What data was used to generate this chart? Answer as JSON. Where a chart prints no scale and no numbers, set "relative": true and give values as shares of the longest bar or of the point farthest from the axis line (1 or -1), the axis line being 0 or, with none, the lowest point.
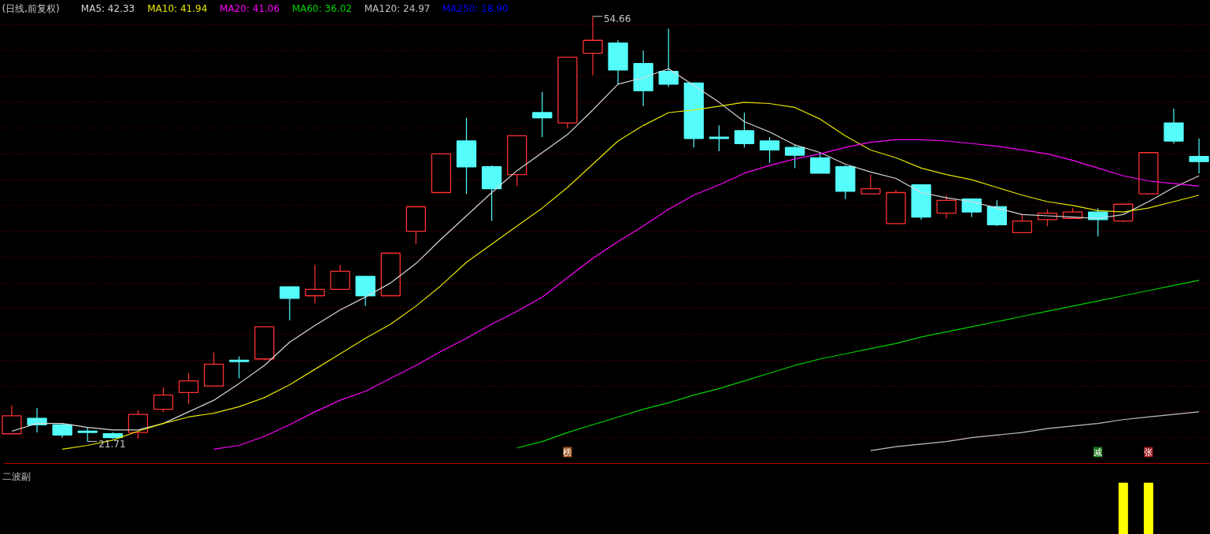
{
  "chart_data": [
    {
      "type": "candlestick",
      "title": "(日线,前复权)",
      "categories": [
        null,
        null,
        null,
        null,
        null,
        null,
        null,
        null,
        null,
        null,
        null,
        null,
        null,
        null,
        null,
        null,
        null,
        null,
        null,
        null,
        null,
        null,
        null,
        null,
        null,
        null,
        null,
        null,
        null,
        null,
        null,
        null,
        null,
        null,
        null,
        null,
        null,
        null,
        null,
        null,
        null,
        null,
        null,
        null,
        null,
        null,
        null,
        null
      ],
      "ohlc": [
        [
          22.3,
          24.5,
          22.3,
          23.7
        ],
        [
          23.5,
          24.3,
          22.4,
          23.0
        ],
        [
          23.0,
          23.1,
          22.0,
          22.2
        ],
        [
          22.5,
          22.8,
          21.71,
          22.4
        ],
        [
          22.3,
          22.4,
          21.9,
          22.0
        ],
        [
          22.4,
          24.1,
          21.9,
          23.8
        ],
        [
          24.2,
          25.9,
          24.0,
          25.3
        ],
        [
          25.5,
          27.0,
          24.6,
          26.4
        ],
        [
          26.0,
          28.6,
          26.0,
          27.7
        ],
        [
          28.0,
          28.3,
          26.6,
          27.9
        ],
        [
          28.1,
          30.6,
          28.0,
          30.6
        ],
        [
          33.7,
          33.7,
          31.1,
          32.8
        ],
        [
          33.0,
          35.4,
          32.4,
          33.5
        ],
        [
          33.5,
          35.4,
          33.5,
          34.9
        ],
        [
          34.5,
          34.5,
          32.2,
          33.0
        ],
        [
          33.0,
          36.3,
          33.0,
          36.3
        ],
        [
          38.0,
          39.9,
          37.0,
          39.9
        ],
        [
          41.0,
          44.0,
          41.0,
          44.0
        ],
        [
          45.0,
          46.8,
          40.9,
          43.0
        ],
        [
          43.0,
          43.1,
          38.8,
          41.3
        ],
        [
          42.4,
          45.4,
          41.5,
          45.4
        ],
        [
          47.2,
          48.8,
          45.3,
          46.8
        ],
        [
          46.4,
          51.5,
          46.0,
          51.5
        ],
        [
          51.8,
          54.66,
          50.1,
          52.8
        ],
        [
          52.6,
          52.8,
          49.4,
          50.5
        ],
        [
          51.0,
          52.0,
          47.7,
          48.9
        ],
        [
          50.4,
          53.7,
          49.2,
          49.4
        ],
        [
          49.5,
          49.5,
          44.5,
          45.2
        ],
        [
          45.3,
          46.2,
          44.2,
          45.2
        ],
        [
          45.8,
          47.2,
          44.5,
          44.8
        ],
        [
          45.0,
          45.3,
          43.3,
          44.3
        ],
        [
          44.5,
          44.7,
          42.9,
          43.9
        ],
        [
          43.7,
          44.1,
          42.5,
          42.5
        ],
        [
          43.0,
          43.1,
          40.5,
          41.1
        ],
        [
          40.9,
          42.4,
          40.9,
          41.3
        ],
        [
          38.6,
          41.2,
          38.6,
          41.0
        ],
        [
          41.6,
          41.6,
          38.9,
          39.1
        ],
        [
          39.4,
          40.8,
          39.0,
          40.4
        ],
        [
          40.5,
          40.5,
          39.1,
          39.5
        ],
        [
          39.9,
          40.4,
          38.4,
          38.5
        ],
        [
          37.9,
          39.3,
          37.9,
          38.8
        ],
        [
          38.9,
          39.7,
          38.4,
          39.4
        ],
        [
          39.0,
          39.8,
          39.0,
          39.5
        ],
        [
          39.5,
          39.8,
          37.6,
          38.9
        ],
        [
          38.8,
          40.1,
          38.7,
          40.1
        ],
        [
          40.9,
          44.1,
          40.9,
          44.1
        ],
        [
          46.4,
          47.5,
          44.8,
          45.0
        ],
        [
          43.8,
          45.2,
          42.5,
          43.4
        ]
      ],
      "colors": [
        "#ff3232",
        "#54fcfc",
        "#54fcfc",
        "#54fcfc",
        "#54fcfc",
        "#ff3232",
        "#ff3232",
        "#ff3232",
        "#ff3232",
        "#54fcfc",
        "#ff3232",
        "#54fcfc",
        "#ff3232",
        "#ff3232",
        "#54fcfc",
        "#ff3232",
        "#ff3232",
        "#ff3232",
        "#54fcfc",
        "#54fcfc",
        "#ff3232",
        "#54fcfc",
        "#ff3232",
        "#ff3232",
        "#54fcfc",
        "#54fcfc",
        "#54fcfc",
        "#54fcfc",
        "#54fcfc",
        "#54fcfc",
        "#54fcfc",
        "#54fcfc",
        "#54fcfc",
        "#54fcfc",
        "#ff3232",
        "#ff3232",
        "#54fcfc",
        "#ff3232",
        "#54fcfc",
        "#54fcfc",
        "#ff3232",
        "#ff3232",
        "#ff3232",
        "#54fcfc",
        "#ff3232",
        "#ff3232",
        "#54fcfc",
        "#54fcfc"
      ],
      "series": [
        {
          "type": "line",
          "name": "MA5: 42.33",
          "color": "#d8d8d8",
          "values": [
            22.5,
            23.1,
            23.1,
            22.8,
            22.6,
            22.6,
            23.1,
            24.0,
            24.9,
            26.2,
            27.6,
            29.4,
            30.7,
            31.9,
            32.9,
            34.0,
            35.5,
            37.4,
            39.2,
            41.0,
            42.7,
            44.1,
            45.5,
            47.4,
            49.4,
            49.9,
            50.6,
            49.3,
            48.0,
            46.5,
            45.7,
            44.7,
            44.1,
            43.2,
            42.6,
            42.1,
            41.0,
            40.6,
            40.3,
            39.8,
            39.3,
            39.2,
            39.1,
            39.0,
            39.3,
            40.3,
            41.4,
            42.3
          ]
        },
        {
          "type": "line",
          "name": "MA10: 41.94",
          "color": "#e6e600",
          "values": [
            null,
            null,
            21.1,
            21.4,
            21.8,
            22.5,
            23.1,
            23.6,
            23.9,
            24.4,
            25.1,
            26.1,
            27.3,
            28.5,
            29.7,
            30.8,
            32.2,
            33.8,
            35.6,
            37.0,
            38.4,
            39.8,
            41.4,
            43.2,
            45.0,
            46.2,
            47.2,
            47.4,
            47.7,
            48.0,
            47.9,
            47.6,
            46.7,
            45.4,
            44.3,
            43.7,
            42.9,
            42.4,
            42.0,
            41.4,
            40.8,
            40.3,
            40.0,
            39.6,
            39.5,
            39.8,
            40.3,
            40.8
          ]
        },
        {
          "type": "line",
          "name": "MA20: 41.06",
          "color": "#ff00ff",
          "values": [
            null,
            null,
            null,
            null,
            null,
            null,
            null,
            null,
            21.1,
            21.4,
            22.1,
            23.0,
            24.0,
            24.9,
            25.6,
            26.6,
            27.6,
            28.7,
            29.7,
            30.8,
            31.8,
            32.9,
            34.4,
            35.9,
            37.2,
            38.4,
            39.7,
            40.8,
            41.6,
            42.5,
            43.1,
            43.6,
            44.0,
            44.5,
            44.9,
            45.1,
            45.1,
            45.0,
            44.8,
            44.6,
            44.3,
            44.0,
            43.5,
            42.9,
            42.3,
            41.9,
            41.7,
            41.5
          ]
        },
        {
          "type": "line",
          "name": "MA60: 36.02",
          "color": "#00d200",
          "values": [
            null,
            null,
            null,
            null,
            null,
            null,
            null,
            null,
            null,
            null,
            null,
            null,
            null,
            null,
            null,
            null,
            null,
            null,
            null,
            null,
            21.2,
            21.7,
            22.4,
            23.0,
            23.6,
            24.2,
            24.7,
            25.3,
            25.8,
            26.4,
            27.0,
            27.6,
            28.1,
            28.5,
            28.9,
            29.3,
            29.8,
            30.2,
            30.6,
            31.0,
            31.4,
            31.8,
            32.2,
            32.6,
            33.0,
            33.4,
            33.8,
            34.2
          ]
        },
        {
          "type": "line",
          "name": "MA120: 24.97",
          "color": "#c0c0c0",
          "values": [
            null,
            null,
            null,
            null,
            null,
            null,
            null,
            null,
            null,
            null,
            null,
            null,
            null,
            null,
            null,
            null,
            null,
            null,
            null,
            null,
            null,
            null,
            null,
            null,
            null,
            null,
            null,
            null,
            null,
            null,
            null,
            null,
            null,
            null,
            21.0,
            21.3,
            21.5,
            21.7,
            22.0,
            22.2,
            22.4,
            22.7,
            22.9,
            23.1,
            23.4,
            23.6,
            23.8,
            24.0
          ]
        },
        {
          "type": "line",
          "name": "MA250: 18.90",
          "color": "#0000ff",
          "values": [
            null,
            null,
            null,
            null,
            null,
            null,
            null,
            null,
            null,
            null,
            null,
            null,
            null,
            null,
            null,
            null,
            null,
            null,
            null,
            null,
            null,
            null,
            null,
            null,
            null,
            null,
            null,
            null,
            null,
            null,
            null,
            null,
            null,
            null,
            null,
            null,
            null,
            null,
            null,
            null,
            null,
            null,
            null,
            null,
            null,
            null,
            null,
            null
          ]
        }
      ],
      "ylim": [
        20.3,
        55.9
      ],
      "yticks": [
        {
          "value": 22,
          "label": null
        },
        {
          "value": 24,
          "label": null
        },
        {
          "value": 26,
          "label": null
        },
        {
          "value": 28,
          "label": null
        },
        {
          "value": 30,
          "label": null
        },
        {
          "value": 32,
          "label": null
        },
        {
          "value": 34,
          "label": null
        },
        {
          "value": 36,
          "label": null
        },
        {
          "value": 38,
          "label": null
        },
        {
          "value": 40,
          "label": null
        },
        {
          "value": 42,
          "label": null
        },
        {
          "value": 44,
          "label": null
        },
        {
          "value": 46,
          "label": null
        },
        {
          "value": 48,
          "label": null
        },
        {
          "value": 50,
          "label": null
        },
        {
          "value": 52,
          "label": null
        },
        {
          "value": 54,
          "label": null
        }
      ],
      "grid": "y",
      "legend": "top left",
      "tick_labels": false,
      "annotations": [
        "54.66",
        "21.71",
        "榜",
        "减",
        "张"
      ]
    },
    {
      "type": "bar",
      "title": "二波副",
      "categories": [
        null,
        null,
        null,
        null,
        null,
        null,
        null,
        null,
        null,
        null,
        null,
        null,
        null,
        null,
        null,
        null,
        null,
        null,
        null,
        null,
        null,
        null,
        null,
        null,
        null,
        null,
        null,
        null,
        null,
        null,
        null,
        null,
        null,
        null,
        null,
        null,
        null,
        null,
        null,
        null,
        null,
        null,
        null,
        null,
        null,
        null,
        null,
        null
      ],
      "values": [
        null,
        null,
        null,
        null,
        null,
        null,
        null,
        null,
        null,
        null,
        null,
        null,
        null,
        null,
        null,
        null,
        null,
        null,
        null,
        null,
        null,
        null,
        null,
        null,
        null,
        null,
        null,
        null,
        null,
        null,
        null,
        null,
        null,
        null,
        null,
        null,
        null,
        null,
        null,
        null,
        null,
        null,
        null,
        null,
        1,
        1,
        null,
        null
      ],
      "color": "#ffff00",
      "relative": true,
      "tick_labels": false
    }
  ]
}
